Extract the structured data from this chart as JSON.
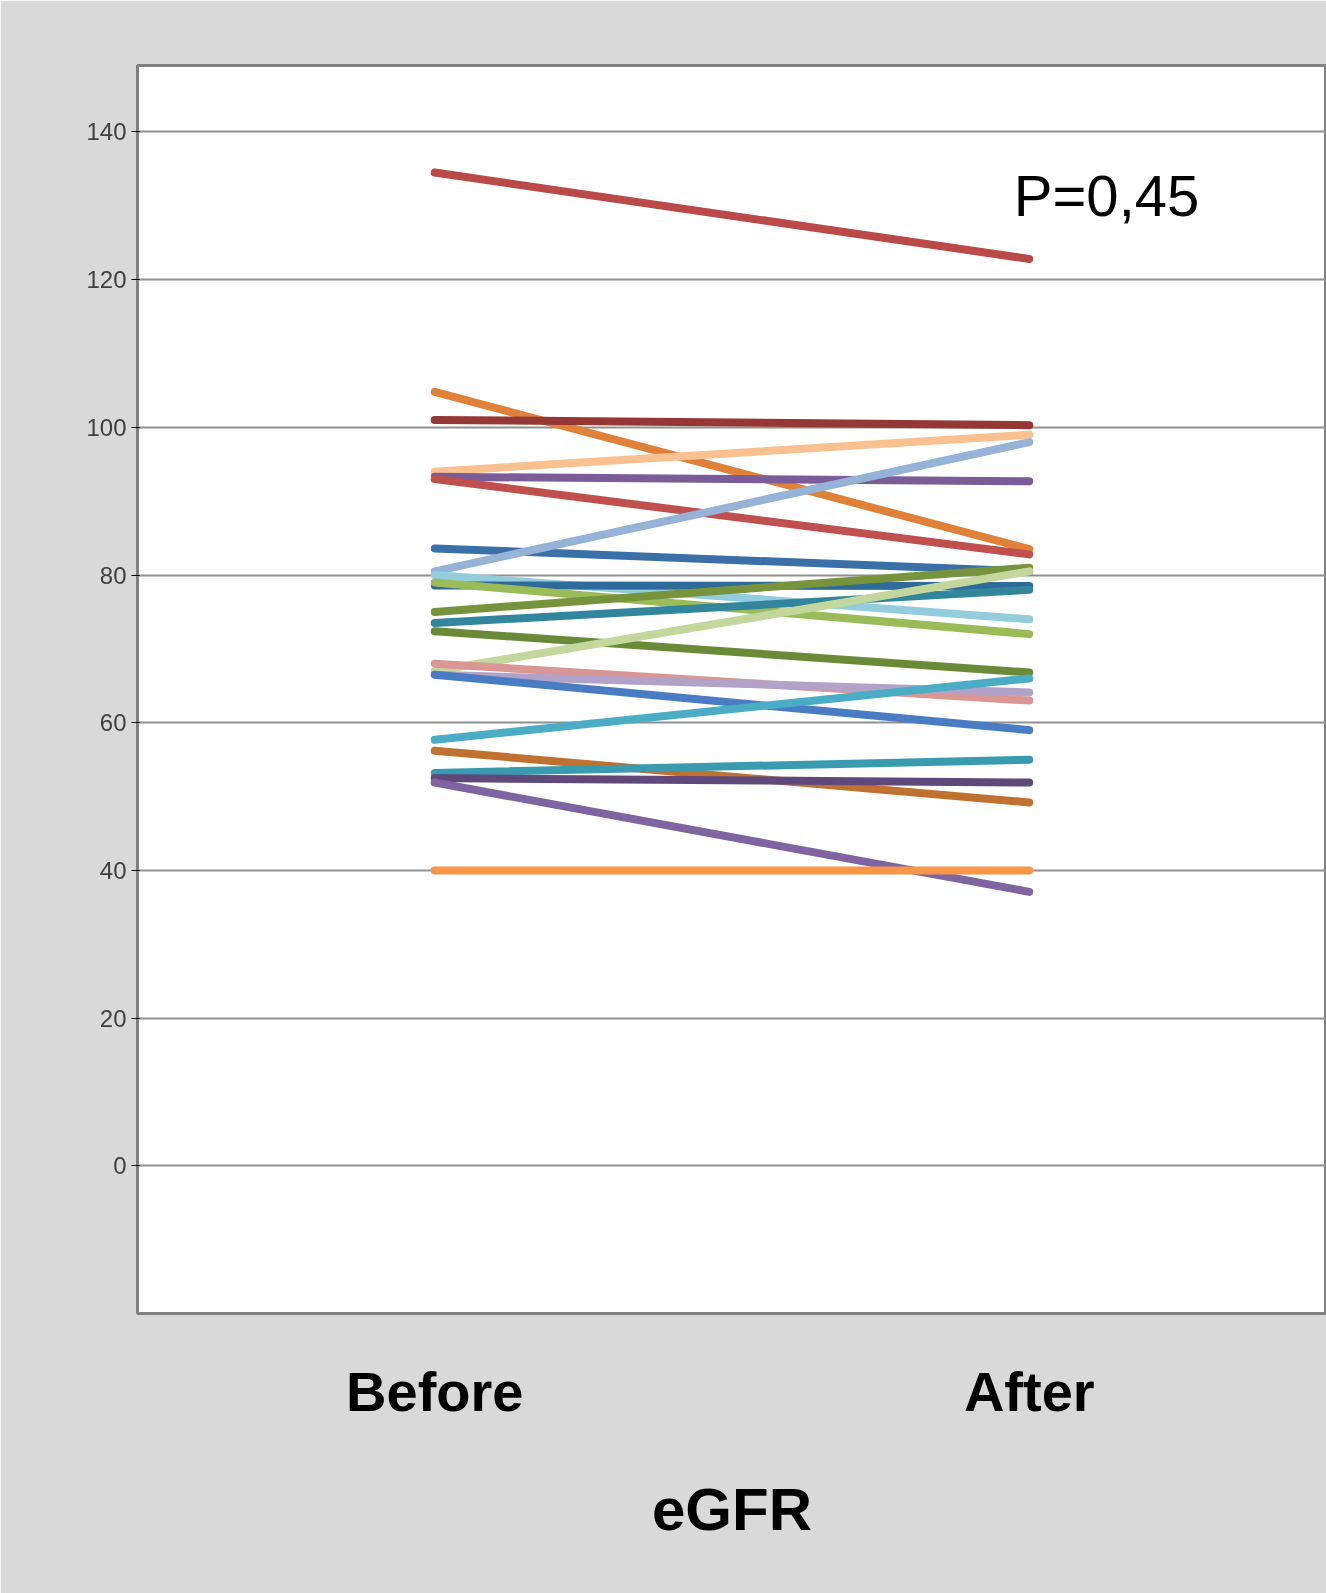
{
  "chart_data": {
    "type": "line",
    "xlabel": "eGFR",
    "categories": [
      "Before",
      "After"
    ],
    "series": [
      {
        "color": "#b94a48",
        "values": [
          134.5,
          122.8
        ]
      },
      {
        "color": "#e0813a",
        "values": [
          104.8,
          83.5
        ]
      },
      {
        "color": "#953735",
        "values": [
          101,
          100.3
        ]
      },
      {
        "color": "#fac090",
        "values": [
          94,
          99
        ]
      },
      {
        "color": "#7a5c99",
        "values": [
          93.3,
          92.7
        ]
      },
      {
        "color": "#c0504d",
        "values": [
          93,
          82.8
        ]
      },
      {
        "color": "#3b6fa8",
        "values": [
          83.6,
          80.5
        ]
      },
      {
        "color": "#95b3d7",
        "values": [
          80.5,
          98
        ]
      },
      {
        "color": "#93cddd",
        "values": [
          80,
          74
        ]
      },
      {
        "color": "#2c6b9a",
        "values": [
          78.6,
          78.5
        ]
      },
      {
        "color": "#9bbb59",
        "values": [
          79,
          72
        ]
      },
      {
        "color": "#77933c",
        "values": [
          75,
          81
        ]
      },
      {
        "color": "#31859c",
        "values": [
          73.5,
          78
        ]
      },
      {
        "color": "#6b8a38",
        "values": [
          72.4,
          66.8
        ]
      },
      {
        "color": "#c3d69b",
        "values": [
          67,
          80.5
        ]
      },
      {
        "color": "#d99694",
        "values": [
          68,
          63
        ]
      },
      {
        "color": "#b3a2c7",
        "values": [
          66.5,
          64.1
        ]
      },
      {
        "color": "#4a7cc4",
        "values": [
          66.5,
          59
        ]
      },
      {
        "color": "#4bacc6",
        "values": [
          57.7,
          66
        ]
      },
      {
        "color": "#c0712f",
        "values": [
          56.2,
          49.2
        ]
      },
      {
        "color": "#3a9bb0",
        "values": [
          53.2,
          55
        ]
      },
      {
        "color": "#5f497a",
        "values": [
          52.5,
          51.9
        ]
      },
      {
        "color": "#8064a2",
        "values": [
          51.9,
          37.1
        ]
      },
      {
        "color": "#f79646",
        "values": [
          40,
          40
        ]
      }
    ],
    "ylim": [
      -20,
      149
    ],
    "yticks": [
      0,
      20,
      40,
      60,
      80,
      100,
      120,
      140
    ],
    "grid": "y",
    "marker": "none",
    "line_style": "solid",
    "annotations": [
      "P=0,45"
    ]
  }
}
